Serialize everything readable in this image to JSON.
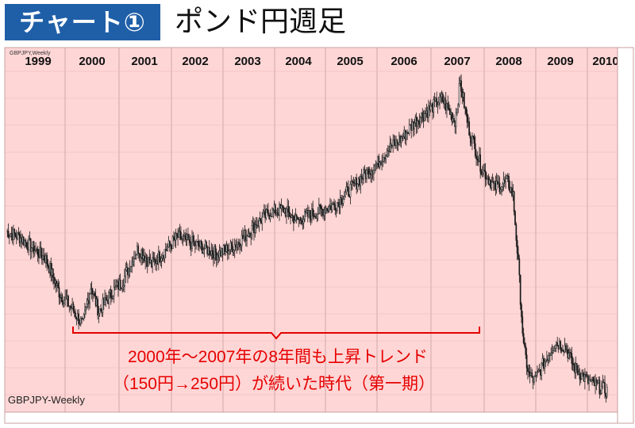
{
  "header": {
    "badge": "チャート①",
    "title": "ポンド円週足"
  },
  "colors": {
    "badge_bg": "#1f5fa8",
    "plot_bg": "#ffd6d6",
    "candle": "#1a1a1a",
    "annotation": "#e60000"
  },
  "chart_data": {
    "type": "line",
    "instrument_label": "GBPJPY-Weekly",
    "corner_label": "GBPJPY,Weekly",
    "years": [
      "1999",
      "2000",
      "2001",
      "2002",
      "2003",
      "2004",
      "2005",
      "2006",
      "2007",
      "2008",
      "2009",
      "2010"
    ],
    "x": [
      1999.0,
      1999.25,
      1999.5,
      1999.75,
      2000.0,
      2000.25,
      2000.45,
      2000.6,
      2000.75,
      2001.0,
      2001.2,
      2001.4,
      2001.5,
      2001.75,
      2002.0,
      2002.25,
      2002.5,
      2002.75,
      2003.0,
      2003.25,
      2003.5,
      2003.75,
      2004.0,
      2004.25,
      2004.5,
      2004.75,
      2005.0,
      2005.25,
      2005.5,
      2005.75,
      2006.0,
      2006.25,
      2006.5,
      2006.75,
      2007.0,
      2007.25,
      2007.5,
      2007.6,
      2007.75,
      2008.0,
      2008.25,
      2008.5,
      2008.6,
      2008.7,
      2008.8,
      2008.9,
      2009.0,
      2009.2,
      2009.4,
      2009.6,
      2009.75,
      2010.0,
      2010.2,
      2010.4
    ],
    "y": [
      192,
      190,
      186,
      182,
      170,
      164,
      158,
      172,
      163,
      170,
      174,
      182,
      186,
      180,
      185,
      190,
      188,
      186,
      184,
      186,
      190,
      195,
      199,
      200,
      196,
      198,
      200,
      202,
      207,
      212,
      216,
      222,
      226,
      232,
      236,
      240,
      232,
      246,
      230,
      215,
      208,
      210,
      205,
      180,
      150,
      140,
      138,
      145,
      152,
      150,
      143,
      138,
      136,
      134
    ],
    "annotation": {
      "line1": "2000年～2007年の8年間も上昇トレンド",
      "line2": "（150円→250円）が続いた時代（第一期）"
    }
  }
}
